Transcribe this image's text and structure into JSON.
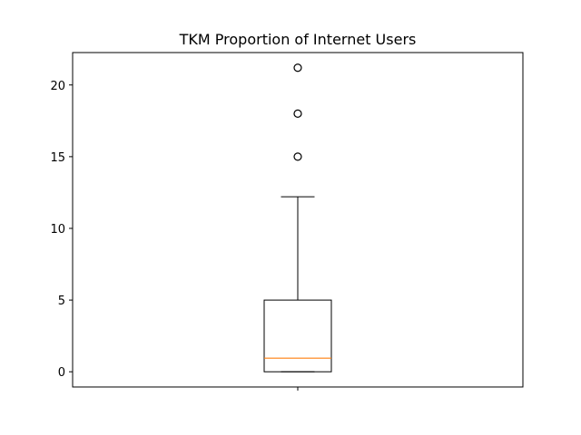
{
  "chart_data": {
    "type": "box",
    "title": "TKM Proportion of Internet Users",
    "xlabel": "",
    "ylabel": "",
    "ylim": [
      -1.06,
      22.26
    ],
    "yticks": [
      0,
      5,
      10,
      15,
      20
    ],
    "yticklabels": [
      "0",
      "5",
      "10",
      "15",
      "20"
    ],
    "xticklabels": [
      ""
    ],
    "grid": false,
    "boxes": [
      {
        "whisker_low": 0.0,
        "q1": 0.0,
        "median": 0.95,
        "q3": 5.0,
        "whisker_high": 12.2,
        "outliers": [
          15.0,
          18.0,
          21.2
        ]
      }
    ],
    "colors": {
      "box": "#000000",
      "median": "#ff7f0e",
      "axes": "#000000"
    }
  }
}
